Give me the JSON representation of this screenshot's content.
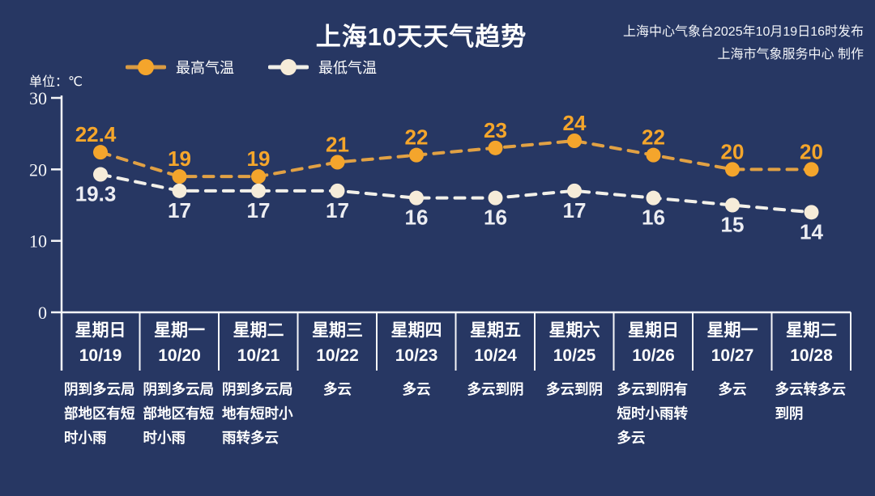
{
  "header": {
    "title": "上海10天天气趋势",
    "source_line1": "上海中心气象台2025年10月19日16时发布",
    "source_line2": "上海市气象服务中心 制作",
    "unit_label": "单位：℃"
  },
  "legend": {
    "high_label": "最高气温",
    "low_label": "最低气温"
  },
  "colors": {
    "background": "#273763",
    "high_marker": "#F4A52C",
    "high_line": "#E1A144",
    "high_value_text": "#F5A62B",
    "low_marker": "#F6ECD9",
    "low_line": "#F2F0E9",
    "low_value_text": "#ECEDF2",
    "axis": "#F5F6F8",
    "text": "#FFFFFF"
  },
  "chart_data": {
    "type": "line",
    "title": "上海10天天气趋势",
    "unit": "℃",
    "categories": [
      "10/19",
      "10/20",
      "10/21",
      "10/22",
      "10/23",
      "10/24",
      "10/25",
      "10/26",
      "10/27",
      "10/28"
    ],
    "series": [
      {
        "name": "最高气温",
        "values": [
          22.4,
          19,
          19,
          21,
          22,
          23,
          24,
          22,
          20,
          20
        ]
      },
      {
        "name": "最低气温",
        "values": [
          19.3,
          17,
          17,
          17,
          16,
          16,
          17,
          16,
          15,
          14
        ]
      }
    ],
    "ylim": [
      0,
      30
    ],
    "yticks": [
      0,
      10,
      20,
      30
    ],
    "grid": false,
    "line_style": "dashed",
    "legend_position": "top-left"
  },
  "days": [
    {
      "weekday": "星期日",
      "date": "10/19",
      "weather": "阴到多云局部地区有短时小雨"
    },
    {
      "weekday": "星期一",
      "date": "10/20",
      "weather": "阴到多云局部地区有短时小雨"
    },
    {
      "weekday": "星期二",
      "date": "10/21",
      "weather": "阴到多云局地有短时小雨转多云"
    },
    {
      "weekday": "星期三",
      "date": "10/22",
      "weather": "多云"
    },
    {
      "weekday": "星期四",
      "date": "10/23",
      "weather": "多云"
    },
    {
      "weekday": "星期五",
      "date": "10/24",
      "weather": "多云到阴"
    },
    {
      "weekday": "星期六",
      "date": "10/25",
      "weather": "多云到阴"
    },
    {
      "weekday": "星期日",
      "date": "10/26",
      "weather": "多云到阴有短时小雨转多云"
    },
    {
      "weekday": "星期一",
      "date": "10/27",
      "weather": "多云"
    },
    {
      "weekday": "星期二",
      "date": "10/28",
      "weather": "多云转多云到阴"
    }
  ]
}
